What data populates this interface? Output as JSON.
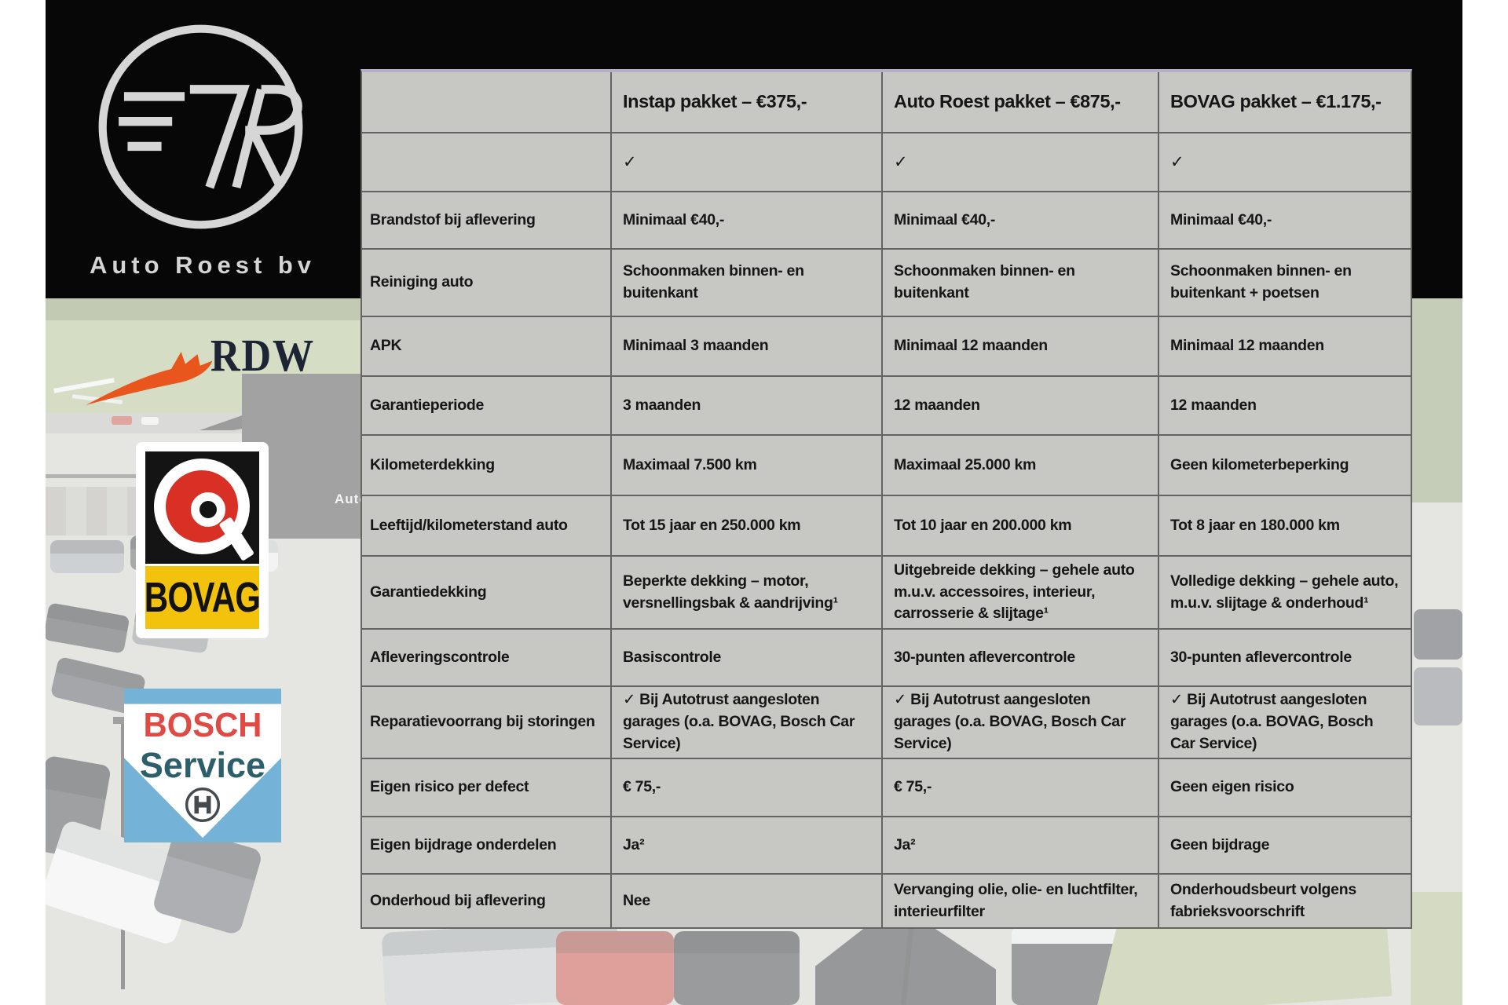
{
  "brand": {
    "name": "Auto Roest bv"
  },
  "partner_logos": {
    "rdw_label": "RDW",
    "bovag_label": "BOVAG",
    "bosch_label_1": "BOSCH",
    "bosch_label_2": "Service"
  },
  "photo": {
    "building_sign": "Auto Ro"
  },
  "colors": {
    "table_bg": "#c7c7c4",
    "table_grid": "#646464",
    "table_top_accent": "#b6aec6",
    "band_black": "#070707",
    "rdw_orange": "#e8561e",
    "bovag_red": "#d93026",
    "bovag_yellow": "#f3c20d",
    "bosch_blue": "#75b2d8",
    "bosch_red": "#e04a45",
    "bosch_teal": "#2d5f6b"
  },
  "table": {
    "header": [
      "",
      "Instap pakket – €375,-",
      "Auto Roest pakket – €875,-",
      "BOVAG pakket – €1.175,-"
    ],
    "rows": [
      {
        "label": "",
        "cells": [
          "✓",
          "✓",
          "✓"
        ]
      },
      {
        "label": "Brandstof bij aflevering",
        "cells": [
          "Minimaal €40,-",
          "Minimaal €40,-",
          "Minimaal €40,-"
        ]
      },
      {
        "label": "Reiniging auto",
        "cells": [
          "Schoonmaken binnen- en buitenkant",
          "Schoonmaken binnen- en buitenkant",
          "Schoonmaken binnen- en buitenkant + poetsen"
        ]
      },
      {
        "label": "APK",
        "cells": [
          "Minimaal 3 maanden",
          "Minimaal 12 maanden",
          "Minimaal 12 maanden"
        ]
      },
      {
        "label": "Garantieperiode",
        "cells": [
          "3 maanden",
          "12 maanden",
          "12 maanden"
        ]
      },
      {
        "label": "Kilometerdekking",
        "cells": [
          "Maximaal 7.500 km",
          "Maximaal 25.000 km",
          "Geen kilometerbeperking"
        ]
      },
      {
        "label": "Leeftijd/kilometerstand auto",
        "cells": [
          "Tot 15 jaar en 250.000 km",
          "Tot 10 jaar en 200.000 km",
          "Tot 8 jaar en 180.000 km"
        ]
      },
      {
        "label": "Garantiedekking",
        "cells": [
          "Beperkte dekking – motor, versnellingsbak & aandrijving¹",
          "Uitgebreide dekking – gehele auto m.u.v. accessoires, interieur, carrosserie & slijtage¹",
          "Volledige dekking – gehele auto, m.u.v. slijtage & onderhoud¹"
        ]
      },
      {
        "label": "Afleveringscontrole",
        "cells": [
          "Basiscontrole",
          "30-punten aflevercontrole",
          "30-punten aflevercontrole"
        ]
      },
      {
        "label": "Reparatievoorrang bij storingen",
        "cells": [
          "✓ Bij Autotrust aangesloten garages (o.a. BOVAG, Bosch Car Service)",
          "✓ Bij Autotrust aangesloten garages (o.a. BOVAG, Bosch Car Service)",
          "✓ Bij Autotrust aangesloten garages (o.a. BOVAG, Bosch Car Service)"
        ]
      },
      {
        "label": "Eigen risico per defect",
        "cells": [
          "€ 75,-",
          "€ 75,-",
          "Geen eigen risico"
        ]
      },
      {
        "label": "Eigen bijdrage onderdelen",
        "cells": [
          "Ja²",
          "Ja²",
          "Geen bijdrage"
        ]
      },
      {
        "label": "Onderhoud bij aflevering",
        "cells": [
          "Nee",
          "Vervanging olie, olie- en luchtfilter, interieurfilter",
          "Onderhoudsbeurt volgens fabrieksvoorschrift"
        ]
      }
    ]
  }
}
